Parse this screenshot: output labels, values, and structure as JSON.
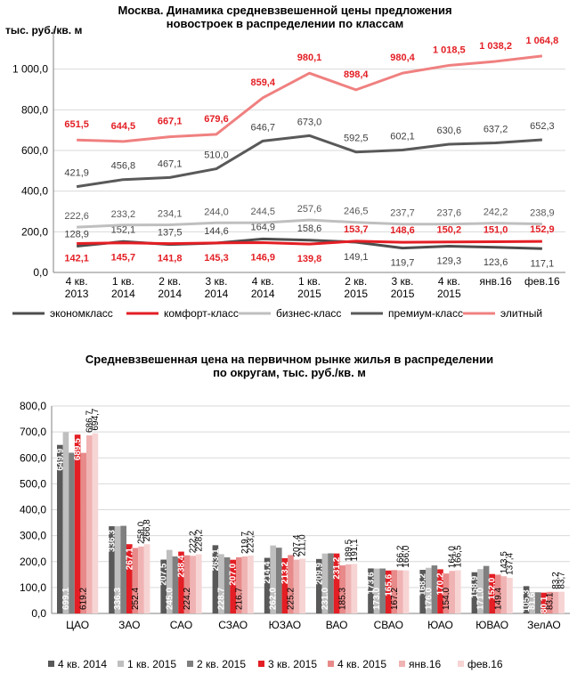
{
  "chart_data": [
    {
      "type": "line",
      "title": "Москва. Динамика средневзвешенной цены предложения новостроек в распределении по классам",
      "ylabel": "тыс. руб./кв. м",
      "ylim": [
        0,
        1200
      ],
      "yticks": [
        "0,0",
        "200,0",
        "400,0",
        "600,0",
        "800,0",
        "1 000,0"
      ],
      "categories": [
        [
          "4 кв.",
          "2013"
        ],
        [
          "1 кв.",
          "2014"
        ],
        [
          "2 кв.",
          "2014"
        ],
        [
          "3 кв.",
          "2014"
        ],
        [
          "4 кв.",
          "2014"
        ],
        [
          "1 кв.",
          "2015"
        ],
        [
          "2 кв.",
          "2015"
        ],
        [
          "3 кв.",
          "2015"
        ],
        [
          "4 кв.",
          "2015"
        ],
        [
          "янв.16"
        ],
        [
          "фев.16"
        ]
      ],
      "series": [
        {
          "name": "эконом­класс",
          "color": "#4d4d4d",
          "values": [
            128.9,
            152.1,
            137.5,
            144.6,
            164.9,
            158.6,
            149.1,
            119.7,
            129.3,
            123.6,
            117.1
          ],
          "labels": [
            "128,9",
            "152,1",
            "137,5",
            "144,6",
            "164,9",
            "158,6",
            "149,1",
            "119,7",
            "129,3",
            "123,6",
            "117,1"
          ]
        },
        {
          "name": "комфорт-класс",
          "color": "#e31e24",
          "values": [
            142.1,
            145.7,
            141.8,
            145.3,
            146.9,
            139.8,
            153.7,
            148.6,
            150.2,
            151.0,
            152.9
          ],
          "labels": [
            "142,1",
            "145,7",
            "141,8",
            "145,3",
            "146,9",
            "139,8",
            "153,7",
            "148,6",
            "150,2",
            "151,0",
            "152,9"
          ]
        },
        {
          "name": "бизнес-класс",
          "color": "#bfbfbf",
          "values": [
            222.6,
            233.2,
            234.1,
            244.0,
            244.5,
            257.6,
            246.5,
            237.7,
            237.6,
            242.2,
            238.9
          ],
          "labels": [
            "222,6",
            "233,2",
            "234,1",
            "244,0",
            "244,5",
            "257,6",
            "246,5",
            "237,7",
            "237,6",
            "242,2",
            "238,9"
          ]
        },
        {
          "name": "премиум-класс",
          "color": "#595959",
          "values": [
            421.9,
            456.8,
            467.1,
            510.0,
            646.7,
            673.0,
            592.5,
            602.1,
            630.6,
            637.2,
            652.3
          ],
          "labels": [
            "421,9",
            "456,8",
            "467,1",
            "510,0",
            "646,7",
            "673,0",
            "592,5",
            "602,1",
            "630,6",
            "637,2",
            "652,3"
          ]
        },
        {
          "name": "элитный",
          "color": "#f08080",
          "values": [
            651.5,
            644.5,
            667.1,
            679.6,
            859.4,
            980.1,
            898.4,
            980.4,
            1018.5,
            1038.2,
            1064.8
          ],
          "labels": [
            "651,5",
            "644,5",
            "667,1",
            "679,6",
            "859,4",
            "980,1",
            "898,4",
            "980,4",
            "1 018,5",
            "1 038,2",
            "1 064,8"
          ]
        }
      ]
    },
    {
      "type": "bar",
      "title": "Средневзвешенная цена на первичном рынке жилья в распределении по округам, тыс. руб./кв. м",
      "ylim": [
        0,
        800
      ],
      "yticks": [
        "0,0",
        "100,0",
        "200,0",
        "300,0",
        "400,0",
        "500,0",
        "600,0",
        "700,0",
        "800,0"
      ],
      "categories": [
        "ЦАО",
        "ЗАО",
        "САО",
        "СЗАО",
        "ЮЗАО",
        "ВАО",
        "СВАО",
        "ЮАО",
        "ЮВАО",
        "ЗелАО"
      ],
      "series": [
        {
          "name": "4 кв. 2014",
          "color": "#595959",
          "values": [
            649.9,
            336.3,
            207.5,
            263.1,
            214.4,
            209.9,
            173.6,
            168.2,
            158.9,
            105.3
          ],
          "labels": [
            "649,9",
            "336,3",
            "207,5",
            "263,1",
            "214,4",
            "209,9",
            "173,6",
            "168,2",
            "158,9",
            "105,3"
          ]
        },
        {
          "name": "1 кв. 2015",
          "color": "#bfbfbf",
          "values": [
            699.1,
            336.3,
            245.0,
            228.7,
            262.0,
            231.0,
            173.0,
            176.0,
            171.0,
            81.6
          ],
          "labels": [
            "699,1",
            "336,3",
            "245,0",
            "228,7",
            "262,0",
            "231,0",
            "173,0",
            "176,0",
            "171,0",
            "81,6"
          ]
        },
        {
          "name": "2 кв. 2015",
          "color": "#7f7f7f",
          "values": [
            619.7,
            337.9,
            220.0,
            216.4,
            253.6,
            231.9,
            173.3,
            185.2,
            183.2,
            81.6
          ]
        },
        {
          "name": "3 кв. 2015",
          "color": "#e31e24",
          "values": [
            689.5,
            267.1,
            238.4,
            207.0,
            213.2,
            231.2,
            165.6,
            170.2,
            152.0,
            80.1
          ],
          "labels": [
            "689,5",
            "267,1",
            "238,4",
            "207,0",
            "213,2",
            "231,2",
            "165,6",
            "170,2",
            "152,0",
            "80,1"
          ]
        },
        {
          "name": "4 кв. 2015",
          "color": "#e88a8a",
          "values": [
            619.2,
            252.4,
            224.2,
            216.7,
            225.2,
            185.3,
            167.2,
            154.0,
            149.4,
            83.1
          ],
          "labels": [
            "619,2",
            "252,4",
            "224,2",
            "216,7",
            "225,2",
            "185,3",
            "167,2",
            "154,0",
            "149,4",
            "83,1"
          ]
        },
        {
          "name": "янв.16",
          "color": "#f0b3b3",
          "values": [
            686.7,
            258.0,
            222.2,
            219.7,
            207.4,
            189.5,
            166.2,
            164.0,
            143.5,
            83.2
          ],
          "labels": [
            "686,7",
            "258,0",
            "222,2",
            "219,7",
            "207,4",
            "189,5",
            "166,2",
            "164,0",
            "143,5",
            "83,2"
          ]
        },
        {
          "name": "фев.16",
          "color": "#f7d4d4",
          "values": [
            694.7,
            266.8,
            228.2,
            223.2,
            211.0,
            191.1,
            166.0,
            166.5,
            137.4,
            83.7
          ],
          "labels": [
            "694,7",
            "266,8",
            "228,2",
            "223,2",
            "211,0",
            "191,1",
            "166,0",
            "166,5",
            "137,4",
            "83,7"
          ]
        }
      ]
    }
  ]
}
